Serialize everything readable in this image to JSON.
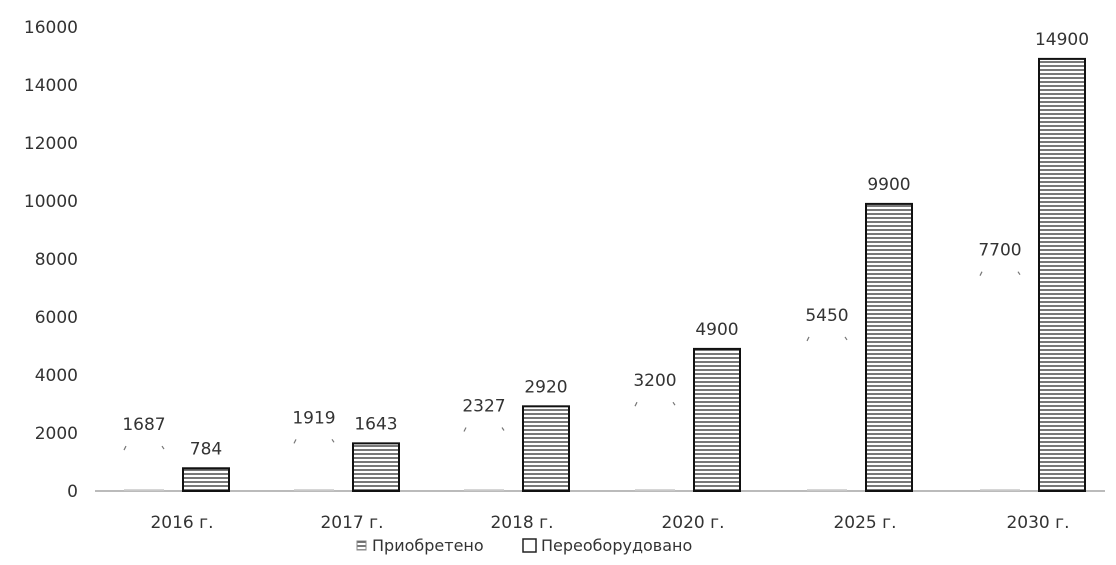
{
  "chart_data": {
    "type": "bar",
    "categories": [
      "2016 г.",
      "2017 г.",
      "2018 г.",
      "2020 г.",
      "2025 г.",
      "2030 г."
    ],
    "series": [
      {
        "name": "Приобретено",
        "values": [
          1687,
          1919,
          2327,
          3200,
          5450,
          7700
        ]
      },
      {
        "name": "Переоборудовано",
        "values": [
          784,
          1643,
          2920,
          4900,
          9900,
          14900
        ]
      }
    ],
    "ylim": [
      0,
      16000
    ],
    "yticks": [
      0,
      2000,
      4000,
      6000,
      8000,
      10000,
      12000,
      14000,
      16000
    ],
    "grid": false,
    "legend_position": "bottom",
    "colors": {
      "Переоборудовано_border": "#111111",
      "Переоборудовано_hatch": "#555555",
      "Приобретено_bar": "#ffffff",
      "axis": "#bbbbbb",
      "text": "#333333"
    }
  }
}
